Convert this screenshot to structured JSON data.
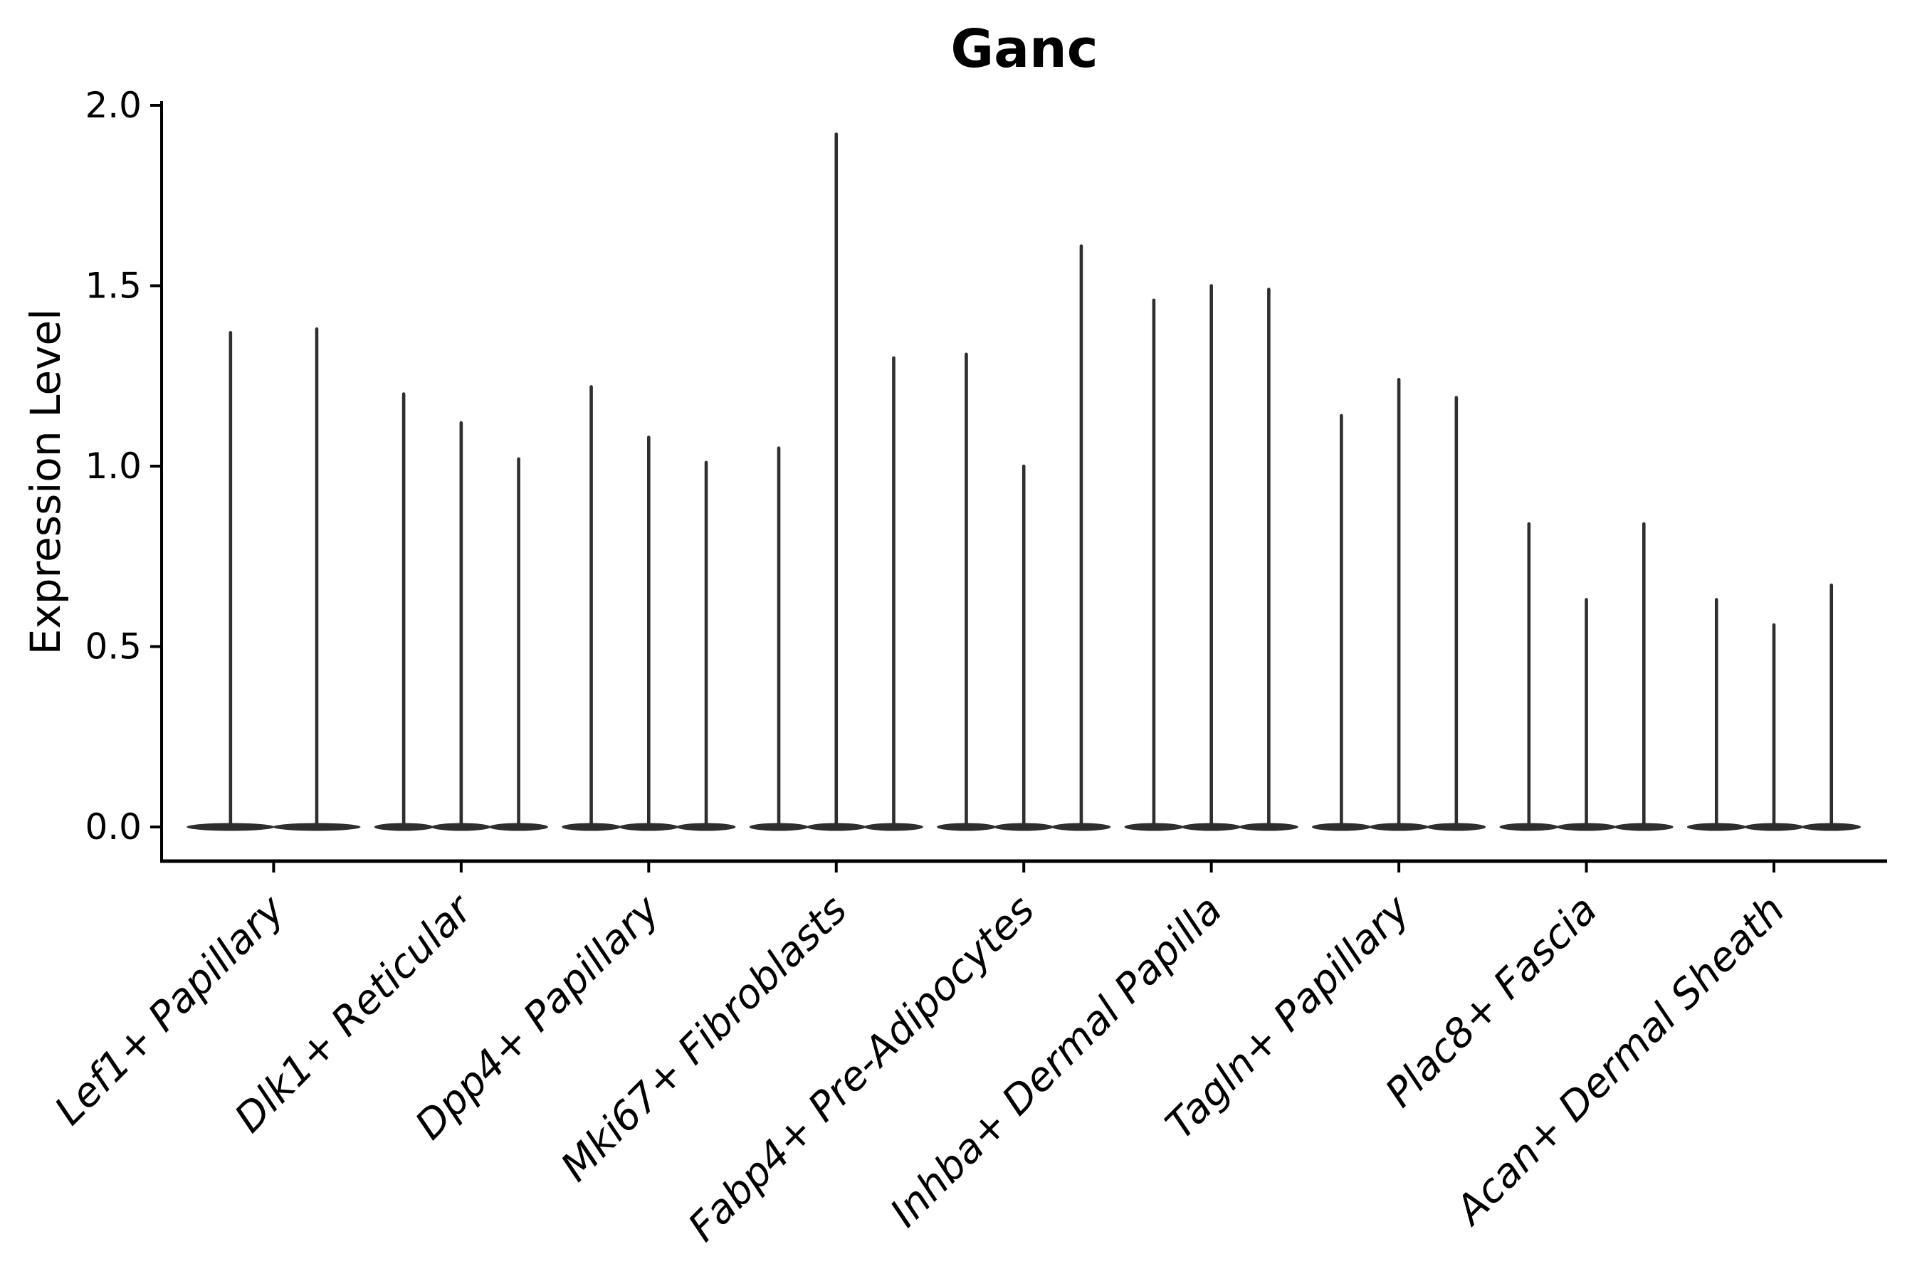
{
  "chart_data": {
    "type": "violin",
    "title": "Ganc",
    "ylabel": "Expression Level",
    "xlabel": "",
    "yticks": [
      0.0,
      0.5,
      1.0,
      1.5,
      2.0
    ],
    "ytick_labels": [
      "0.0",
      "0.5",
      "1.0",
      "1.5",
      "2.0"
    ],
    "ylim": [
      -0.095,
      2.012
    ],
    "grid": false,
    "legend": "none",
    "violin_color": "#2e2e2e",
    "axis_color": "#000000",
    "xtick_label_style": "italic",
    "xtick_label_rotation_deg": 45,
    "description": "Each violin is a thin vertical spike (max expression tip) with a wide flattened base at 0, meaning most cells have zero expression.",
    "categories": [
      {
        "label": "Lef1+ Papillary",
        "violin_tips": [
          1.37,
          1.38
        ]
      },
      {
        "label": "Dlk1+ Reticular",
        "violin_tips": [
          1.2,
          1.12,
          1.02
        ]
      },
      {
        "label": "Dpp4+ Papillary",
        "violin_tips": [
          1.22,
          1.08,
          1.01
        ]
      },
      {
        "label": "Mki67+ Fibroblasts",
        "violin_tips": [
          1.05,
          1.92,
          1.3
        ]
      },
      {
        "label": "Fabp4+ Pre-Adipocytes",
        "violin_tips": [
          1.31,
          1.0,
          1.61
        ]
      },
      {
        "label": "Inhba+ Dermal Papilla",
        "violin_tips": [
          1.46,
          1.5,
          1.49
        ]
      },
      {
        "label": "Tagln+ Papillary",
        "violin_tips": [
          1.14,
          1.24,
          1.19
        ]
      },
      {
        "label": "Plac8+ Fascia",
        "violin_tips": [
          0.84,
          0.63,
          0.84
        ]
      },
      {
        "label": "Acan+ Dermal Sheath",
        "violin_tips": [
          0.63,
          0.56,
          0.67
        ]
      }
    ]
  }
}
